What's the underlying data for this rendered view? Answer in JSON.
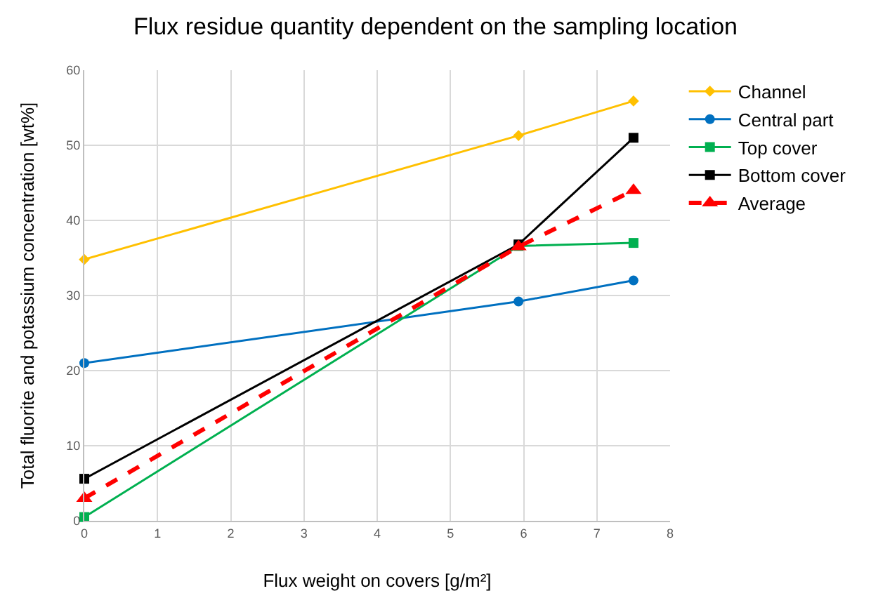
{
  "chart_data": {
    "type": "line",
    "title": "Flux residue quantity dependent on the sampling location",
    "xlabel": "Flux weight on covers [g/m²]",
    "ylabel": "Total fluorite and potassium concentration [wt%]",
    "x": [
      0,
      5.93,
      7.5
    ],
    "series": [
      {
        "name": "Channel",
        "color": "#ffc000",
        "marker": "diamond",
        "line_style": "solid",
        "values": [
          34.8,
          51.3,
          55.9
        ]
      },
      {
        "name": "Central part",
        "color": "#0070c0",
        "marker": "circle",
        "line_style": "solid",
        "values": [
          21,
          29.2,
          32
        ]
      },
      {
        "name": "Top cover",
        "color": "#00b050",
        "marker": "square",
        "line_style": "solid",
        "values": [
          0.5,
          36.6,
          37
        ]
      },
      {
        "name": "Bottom cover",
        "color": "#000000",
        "marker": "square",
        "line_style": "solid",
        "values": [
          5.6,
          36.8,
          51
        ]
      },
      {
        "name": "Average",
        "color": "#ff0000",
        "marker": "triangle",
        "line_style": "dashed",
        "values": [
          3,
          36.5,
          44
        ]
      }
    ],
    "xlim": [
      0,
      8
    ],
    "xticks": [
      0,
      1,
      2,
      3,
      4,
      5,
      6,
      7,
      8
    ],
    "ylim": [
      0,
      60
    ],
    "yticks": [
      0,
      10,
      20,
      30,
      40,
      50,
      60
    ],
    "grid": true,
    "legend": "right"
  }
}
